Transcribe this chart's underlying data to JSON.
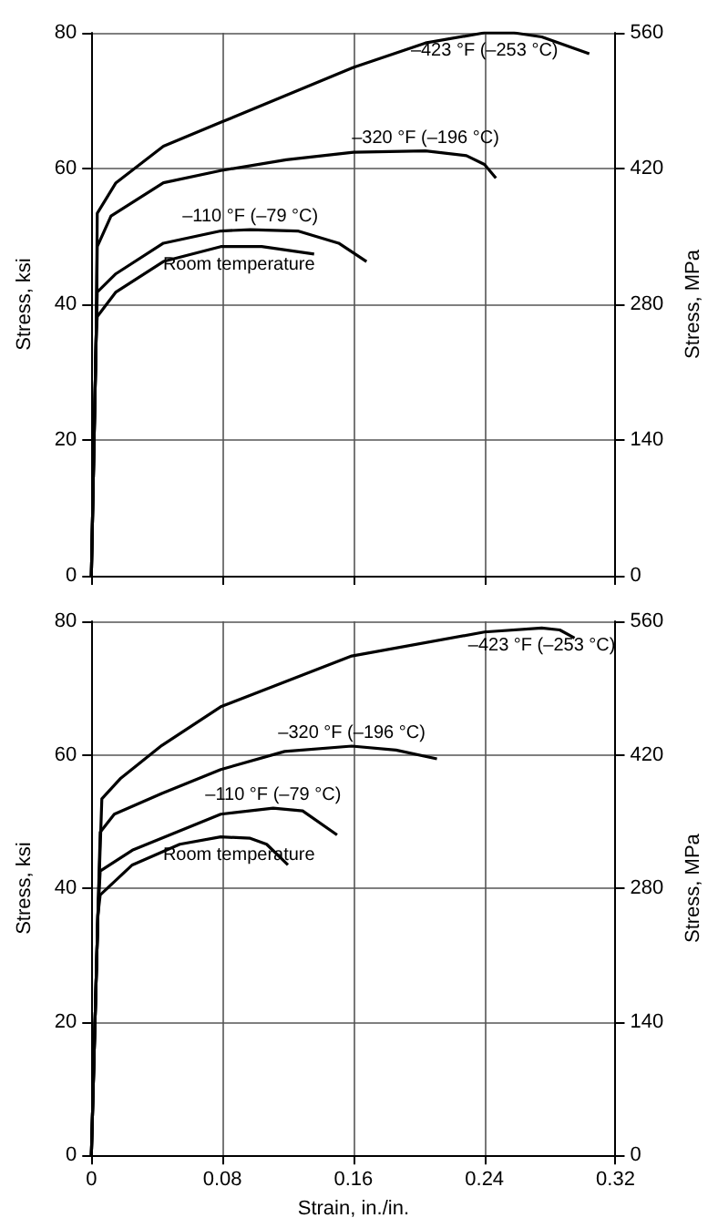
{
  "chart_data": [
    {
      "type": "line",
      "ylabel": "Stress, ksi",
      "y2label": "Stress, MPa",
      "xlim": [
        0,
        0.32
      ],
      "xticks": [
        0,
        0.08,
        0.16,
        0.24,
        0.32
      ],
      "ylim": [
        0,
        80
      ],
      "yticks": [
        0,
        20,
        40,
        60,
        80
      ],
      "y2lim": [
        0,
        560
      ],
      "y2ticks": [
        0,
        140,
        280,
        420,
        560
      ],
      "grid": true,
      "marker": "none",
      "tick_labels": "y",
      "series": [
        {
          "name": "–423 °F (–253 °C)",
          "color": "#000000",
          "x": [
            0,
            0.003,
            0.0036,
            0.015,
            0.044,
            0.079,
            0.16,
            0.204,
            0.24,
            0.258,
            0.275,
            0.304
          ],
          "values": [
            0,
            36,
            53.4,
            57.9,
            63.3,
            66.8,
            74.9,
            78.5,
            80,
            80,
            79.4,
            76.9
          ]
        },
        {
          "name": "–320 °F (–196 °C)",
          "color": "#000000",
          "x": [
            0,
            0.003,
            0.0036,
            0.012,
            0.044,
            0.079,
            0.119,
            0.16,
            0.204,
            0.229,
            0.24,
            0.247
          ],
          "values": [
            0,
            36,
            48.5,
            53,
            57.9,
            59.7,
            61.3,
            62.4,
            62.6,
            61.9,
            60.6,
            58.6
          ]
        },
        {
          "name": "–110 °F (–79 °C)",
          "color": "#000000",
          "x": [
            0,
            0.003,
            0.0036,
            0.015,
            0.044,
            0.079,
            0.097,
            0.126,
            0.151,
            0.168
          ],
          "values": [
            0,
            36,
            41.8,
            44.5,
            49,
            50.8,
            51,
            50.8,
            49,
            46.3
          ]
        },
        {
          "name": "Room temperature",
          "color": "#000000",
          "x": [
            0,
            0.003,
            0.0036,
            0.015,
            0.044,
            0.079,
            0.104,
            0.136
          ],
          "values": [
            0,
            36,
            38.2,
            41.8,
            46.3,
            48.5,
            48.5,
            47.4
          ]
        }
      ]
    },
    {
      "type": "line",
      "xlabel": "Strain, in./in.",
      "ylabel": "Stress, ksi",
      "y2label": "Stress, MPa",
      "xlim": [
        0,
        0.32
      ],
      "xticks": [
        0,
        0.08,
        0.16,
        0.24,
        0.32
      ],
      "ylim": [
        0,
        80
      ],
      "yticks": [
        0,
        20,
        40,
        60,
        80
      ],
      "y2lim": [
        0,
        560
      ],
      "y2ticks": [
        0,
        140,
        280,
        420,
        560
      ],
      "grid": true,
      "marker": "none",
      "series": [
        {
          "name": "–423 °F (–253 °C)",
          "color": "#000000",
          "x": [
            0,
            0.004,
            0.0064,
            0.018,
            0.043,
            0.079,
            0.159,
            0.24,
            0.275,
            0.286,
            0.295
          ],
          "values": [
            0,
            36,
            53.4,
            56.5,
            61.4,
            67.2,
            74.8,
            78.4,
            79,
            78.7,
            77.5
          ]
        },
        {
          "name": "–320 °F (–196 °C)",
          "color": "#000000",
          "x": [
            0,
            0.004,
            0.0054,
            0.014,
            0.043,
            0.079,
            0.118,
            0.159,
            0.186,
            0.211
          ],
          "values": [
            0,
            36,
            48.4,
            51.1,
            54.2,
            57.8,
            60.5,
            61.3,
            60.7,
            59.4
          ]
        },
        {
          "name": "–110 °F (–79 °C)",
          "color": "#000000",
          "x": [
            0,
            0.004,
            0.0054,
            0.025,
            0.079,
            0.111,
            0.129,
            0.15
          ],
          "values": [
            0,
            36,
            42.6,
            45.7,
            51.1,
            52,
            51.6,
            48
          ]
        },
        {
          "name": "Room temperature",
          "color": "#000000",
          "x": [
            0,
            0.004,
            0.0054,
            0.025,
            0.054,
            0.079,
            0.097,
            0.107,
            0.12
          ],
          "values": [
            0,
            36,
            39,
            43.5,
            46.6,
            47.7,
            47.5,
            46.6,
            43.5
          ]
        }
      ]
    }
  ]
}
